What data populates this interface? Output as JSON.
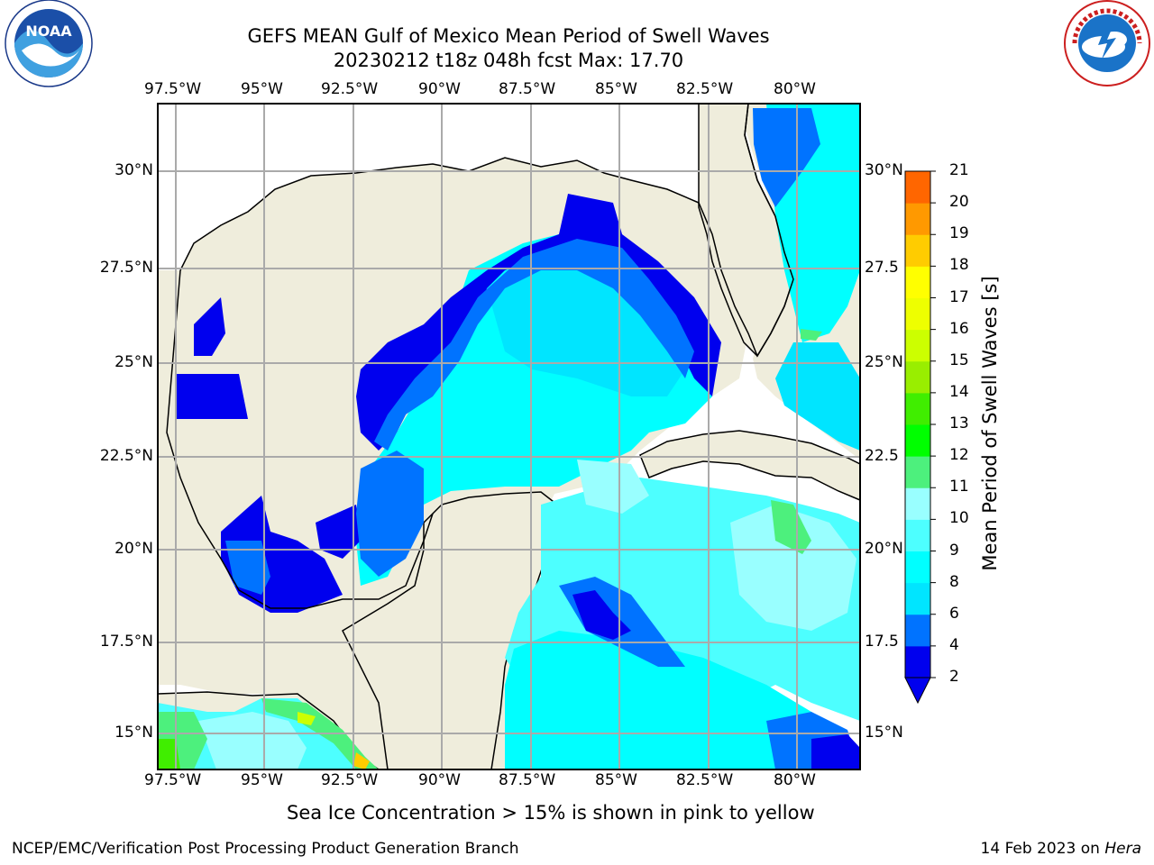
{
  "title": {
    "line1": "GEFS MEAN Gulf of Mexico Mean Period of Swell Waves",
    "line2": "20230212 t18z 048h fcst   Max: 17.70"
  },
  "map": {
    "lon_labels": [
      "97.5°W",
      "95°W",
      "92.5°W",
      "90°W",
      "87.5°W",
      "85°W",
      "82.5°W",
      "80°W"
    ],
    "lat_labels_left": [
      "30°N",
      "27.5°N",
      "25°N",
      "22.5°N",
      "20°N",
      "17.5°N",
      "15°N"
    ],
    "lat_labels_right": [
      "30°N",
      "27.5",
      "25°N",
      "22.5",
      "20°N",
      "17.5",
      "15°N"
    ],
    "land_color": "#efeddc",
    "ocean_nodata_color": "#ffffff"
  },
  "colorbar": {
    "title": "Mean Period of Swell Waves [s]",
    "ticks": [
      "2",
      "4",
      "6",
      "8",
      "9",
      "10",
      "11",
      "12",
      "13",
      "14",
      "15",
      "16",
      "17",
      "18",
      "19",
      "20",
      "21"
    ],
    "colors": [
      "#0000ee",
      "#0073ff",
      "#00e5ff",
      "#00ffff",
      "#4dffff",
      "#99ffff",
      "#4df07d",
      "#00ff00",
      "#40ee00",
      "#99ee00",
      "#ccff00",
      "#eeff00",
      "#ffff00",
      "#ffcc00",
      "#ff9900",
      "#ff6600",
      "#ff3300",
      "#ff0000"
    ]
  },
  "caption": "Sea Ice Concentration > 15% is shown in pink to yellow",
  "footer": {
    "left": "NCEP/EMC/Verification Post Processing Product Generation Branch",
    "right_date": "14 Feb 2023 on ",
    "right_host": "Hera"
  },
  "logos": {
    "noaa": "noaa-logo",
    "nws": "nws-logo"
  }
}
